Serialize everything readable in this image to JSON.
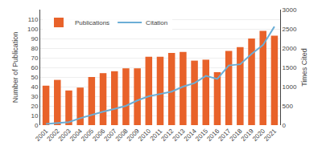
{
  "chart_data": {
    "type": "bar",
    "categories": [
      "2001",
      "2002",
      "2003",
      "2004",
      "2005",
      "2006",
      "2007",
      "2008",
      "2009",
      "2010",
      "2011",
      "2012",
      "2013",
      "2014",
      "2015",
      "2016",
      "2017",
      "2018",
      "2019",
      "2020",
      "2021"
    ],
    "series": [
      {
        "name": "Publications",
        "type": "bar",
        "color": "#E8622A",
        "values": [
          41,
          47,
          36,
          39,
          50,
          54,
          56,
          59,
          59,
          71,
          71,
          75,
          76,
          67,
          68,
          55,
          77,
          81,
          90,
          98,
          93
        ]
      },
      {
        "name": "Citation",
        "type": "line",
        "color": "#6BAED6",
        "axis": "y2",
        "values": [
          30,
          50,
          80,
          180,
          270,
          350,
          420,
          500,
          640,
          750,
          810,
          870,
          1000,
          1090,
          1280,
          1200,
          1550,
          1580,
          1850,
          2080,
          2560
        ]
      }
    ],
    "ylabel": "Number of Publication",
    "y2label": "Times Cited",
    "ylim": [
      0,
      120
    ],
    "yticks": [
      0,
      10,
      20,
      30,
      40,
      50,
      60,
      70,
      80,
      90,
      100,
      110
    ],
    "y2lim": [
      0,
      3000
    ],
    "y2ticks": [
      0,
      500,
      1000,
      1500,
      2000,
      2500,
      3000
    ],
    "grid": true,
    "legend": "upper left"
  }
}
